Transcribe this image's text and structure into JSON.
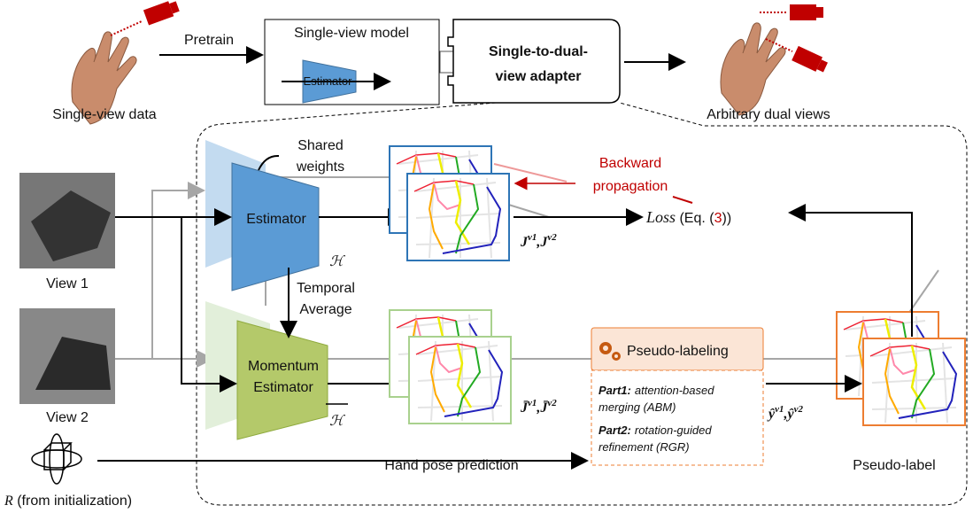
{
  "top": {
    "pretrain": "Pretrain",
    "single_view_data": "Single-view data",
    "single_view_model": {
      "title": "Single-view model",
      "estimator": "Estimator"
    },
    "adapter": [
      "Single-to-dual-",
      "view adapter"
    ],
    "dual_views": "Arbitrary dual views"
  },
  "framework": {
    "view1": "View 1",
    "view2": "View 2",
    "shared_weights": [
      "Shared",
      "weights"
    ],
    "estimator": {
      "label": "Estimator",
      "symbol": "ℋ"
    },
    "temporal_average": [
      "Temporal",
      "Average"
    ],
    "momentum_estimator": {
      "label": [
        "Momentum",
        "Estimator"
      ],
      "symbol": "ℋ"
    },
    "estimator_output": [
      "J",
      "v1",
      ",",
      "J",
      "v2"
    ],
    "momentum_output": [
      "J̄",
      "v1",
      ",",
      "J̄",
      "v2"
    ],
    "backward": [
      "Backward",
      "propagation"
    ],
    "loss": [
      "Loss",
      " (Eq. (",
      "3",
      "))"
    ],
    "pseudo_labeling": {
      "title": "Pseudo-labeling",
      "part1": [
        "Part1:",
        "attention-based",
        "merging (ABM)"
      ],
      "part2": [
        "Part2:",
        "rotation-guided",
        "refinement (RGR)"
      ]
    },
    "pseudo_output": [
      "ŷ",
      "v1",
      ",",
      "ŷ",
      "v2"
    ],
    "hand_pose_prediction": "Hand pose prediction",
    "pseudo_label": "Pseudo-label",
    "rotation": [
      "R",
      " (from initialization)"
    ]
  }
}
